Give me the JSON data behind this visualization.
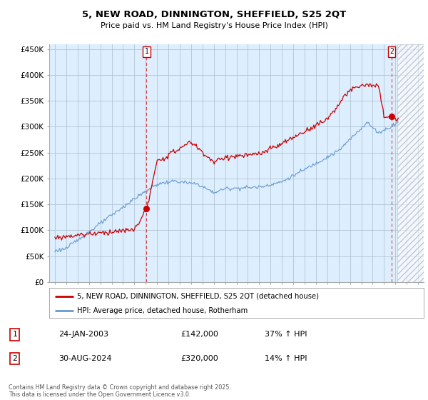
{
  "title": "5, NEW ROAD, DINNINGTON, SHEFFIELD, S25 2QT",
  "subtitle": "Price paid vs. HM Land Registry's House Price Index (HPI)",
  "ylim": [
    0,
    460000
  ],
  "yticks": [
    0,
    50000,
    100000,
    150000,
    200000,
    250000,
    300000,
    350000,
    400000,
    450000
  ],
  "xlim_start": 1994.5,
  "xlim_end": 2027.5,
  "plot_bg_color": "#ddeeff",
  "background_color": "#ffffff",
  "grid_color": "#aabbcc",
  "red_line_color": "#cc0000",
  "blue_line_color": "#6699cc",
  "sale1_x": 2003.07,
  "sale1_y": 142000,
  "sale1_label": "1",
  "sale2_x": 2024.67,
  "sale2_y": 320000,
  "sale2_label": "2",
  "vline_color": "#dd2222",
  "marker_color": "#cc0000",
  "legend_line1": "5, NEW ROAD, DINNINGTON, SHEFFIELD, S25 2QT (detached house)",
  "legend_line2": "HPI: Average price, detached house, Rotherham",
  "table_row1": [
    "1",
    "24-JAN-2003",
    "£142,000",
    "37% ↑ HPI"
  ],
  "table_row2": [
    "2",
    "30-AUG-2024",
    "£320,000",
    "14% ↑ HPI"
  ],
  "footer": "Contains HM Land Registry data © Crown copyright and database right 2025.\nThis data is licensed under the Open Government Licence v3.0.",
  "hatched_region_start": 2025.17,
  "hatched_region_end": 2027.5
}
